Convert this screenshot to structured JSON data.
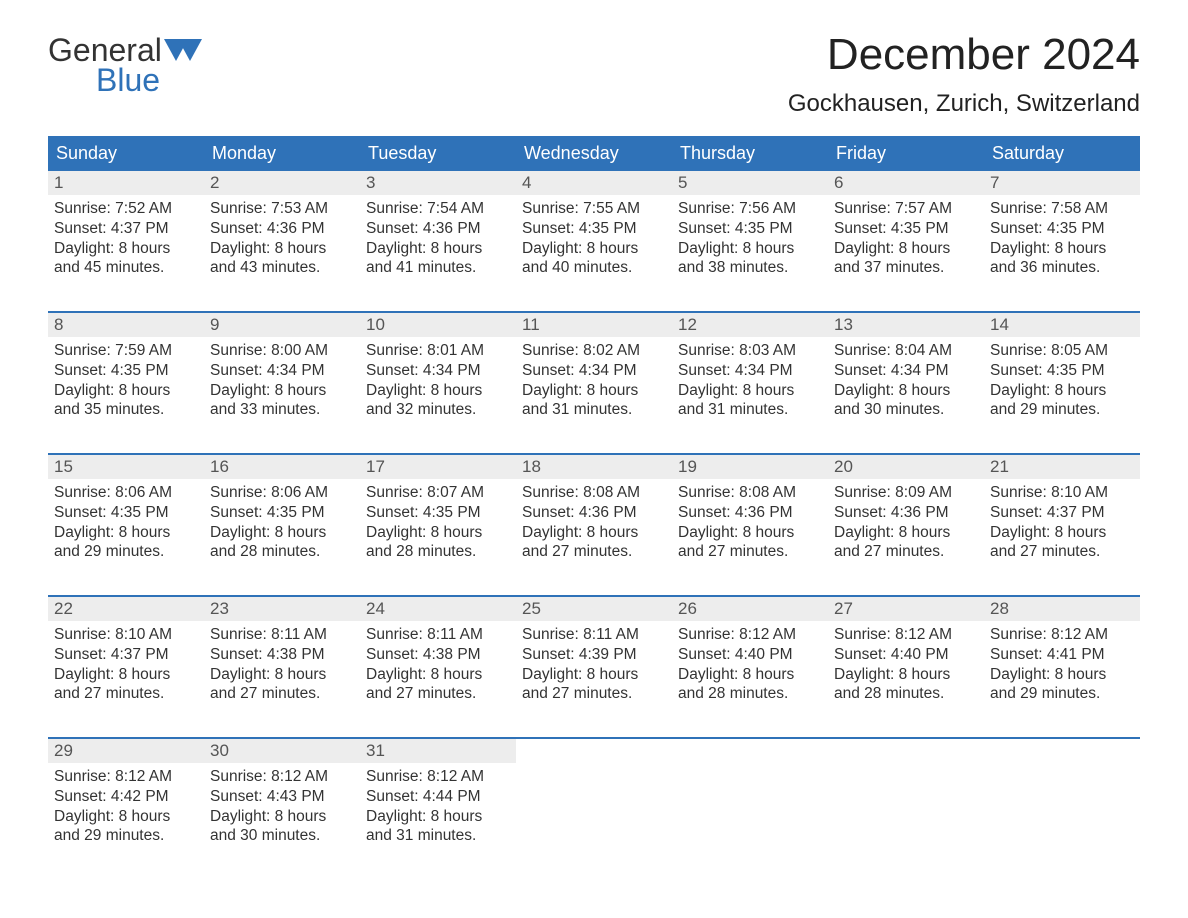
{
  "logo": {
    "line1": "General",
    "line2": "Blue"
  },
  "title": "December 2024",
  "location": "Gockhausen, Zurich, Switzerland",
  "colors": {
    "header_bg": "#2f72b8",
    "header_text": "#ffffff",
    "daybar_bg": "#ededed",
    "text": "#333333",
    "logo_accent": "#2f72b8"
  },
  "calendar": {
    "weekdays": [
      "Sunday",
      "Monday",
      "Tuesday",
      "Wednesday",
      "Thursday",
      "Friday",
      "Saturday"
    ],
    "weeks": [
      [
        {
          "n": "1",
          "sunrise": "7:52 AM",
          "sunset": "4:37 PM",
          "daylight": "8 hours and 45 minutes."
        },
        {
          "n": "2",
          "sunrise": "7:53 AM",
          "sunset": "4:36 PM",
          "daylight": "8 hours and 43 minutes."
        },
        {
          "n": "3",
          "sunrise": "7:54 AM",
          "sunset": "4:36 PM",
          "daylight": "8 hours and 41 minutes."
        },
        {
          "n": "4",
          "sunrise": "7:55 AM",
          "sunset": "4:35 PM",
          "daylight": "8 hours and 40 minutes."
        },
        {
          "n": "5",
          "sunrise": "7:56 AM",
          "sunset": "4:35 PM",
          "daylight": "8 hours and 38 minutes."
        },
        {
          "n": "6",
          "sunrise": "7:57 AM",
          "sunset": "4:35 PM",
          "daylight": "8 hours and 37 minutes."
        },
        {
          "n": "7",
          "sunrise": "7:58 AM",
          "sunset": "4:35 PM",
          "daylight": "8 hours and 36 minutes."
        }
      ],
      [
        {
          "n": "8",
          "sunrise": "7:59 AM",
          "sunset": "4:35 PM",
          "daylight": "8 hours and 35 minutes."
        },
        {
          "n": "9",
          "sunrise": "8:00 AM",
          "sunset": "4:34 PM",
          "daylight": "8 hours and 33 minutes."
        },
        {
          "n": "10",
          "sunrise": "8:01 AM",
          "sunset": "4:34 PM",
          "daylight": "8 hours and 32 minutes."
        },
        {
          "n": "11",
          "sunrise": "8:02 AM",
          "sunset": "4:34 PM",
          "daylight": "8 hours and 31 minutes."
        },
        {
          "n": "12",
          "sunrise": "8:03 AM",
          "sunset": "4:34 PM",
          "daylight": "8 hours and 31 minutes."
        },
        {
          "n": "13",
          "sunrise": "8:04 AM",
          "sunset": "4:34 PM",
          "daylight": "8 hours and 30 minutes."
        },
        {
          "n": "14",
          "sunrise": "8:05 AM",
          "sunset": "4:35 PM",
          "daylight": "8 hours and 29 minutes."
        }
      ],
      [
        {
          "n": "15",
          "sunrise": "8:06 AM",
          "sunset": "4:35 PM",
          "daylight": "8 hours and 29 minutes."
        },
        {
          "n": "16",
          "sunrise": "8:06 AM",
          "sunset": "4:35 PM",
          "daylight": "8 hours and 28 minutes."
        },
        {
          "n": "17",
          "sunrise": "8:07 AM",
          "sunset": "4:35 PM",
          "daylight": "8 hours and 28 minutes."
        },
        {
          "n": "18",
          "sunrise": "8:08 AM",
          "sunset": "4:36 PM",
          "daylight": "8 hours and 27 minutes."
        },
        {
          "n": "19",
          "sunrise": "8:08 AM",
          "sunset": "4:36 PM",
          "daylight": "8 hours and 27 minutes."
        },
        {
          "n": "20",
          "sunrise": "8:09 AM",
          "sunset": "4:36 PM",
          "daylight": "8 hours and 27 minutes."
        },
        {
          "n": "21",
          "sunrise": "8:10 AM",
          "sunset": "4:37 PM",
          "daylight": "8 hours and 27 minutes."
        }
      ],
      [
        {
          "n": "22",
          "sunrise": "8:10 AM",
          "sunset": "4:37 PM",
          "daylight": "8 hours and 27 minutes."
        },
        {
          "n": "23",
          "sunrise": "8:11 AM",
          "sunset": "4:38 PM",
          "daylight": "8 hours and 27 minutes."
        },
        {
          "n": "24",
          "sunrise": "8:11 AM",
          "sunset": "4:38 PM",
          "daylight": "8 hours and 27 minutes."
        },
        {
          "n": "25",
          "sunrise": "8:11 AM",
          "sunset": "4:39 PM",
          "daylight": "8 hours and 27 minutes."
        },
        {
          "n": "26",
          "sunrise": "8:12 AM",
          "sunset": "4:40 PM",
          "daylight": "8 hours and 28 minutes."
        },
        {
          "n": "27",
          "sunrise": "8:12 AM",
          "sunset": "4:40 PM",
          "daylight": "8 hours and 28 minutes."
        },
        {
          "n": "28",
          "sunrise": "8:12 AM",
          "sunset": "4:41 PM",
          "daylight": "8 hours and 29 minutes."
        }
      ],
      [
        {
          "n": "29",
          "sunrise": "8:12 AM",
          "sunset": "4:42 PM",
          "daylight": "8 hours and 29 minutes."
        },
        {
          "n": "30",
          "sunrise": "8:12 AM",
          "sunset": "4:43 PM",
          "daylight": "8 hours and 30 minutes."
        },
        {
          "n": "31",
          "sunrise": "8:12 AM",
          "sunset": "4:44 PM",
          "daylight": "8 hours and 31 minutes."
        },
        null,
        null,
        null,
        null
      ]
    ],
    "labels": {
      "sunrise": "Sunrise:",
      "sunset": "Sunset:",
      "daylight": "Daylight:"
    }
  }
}
